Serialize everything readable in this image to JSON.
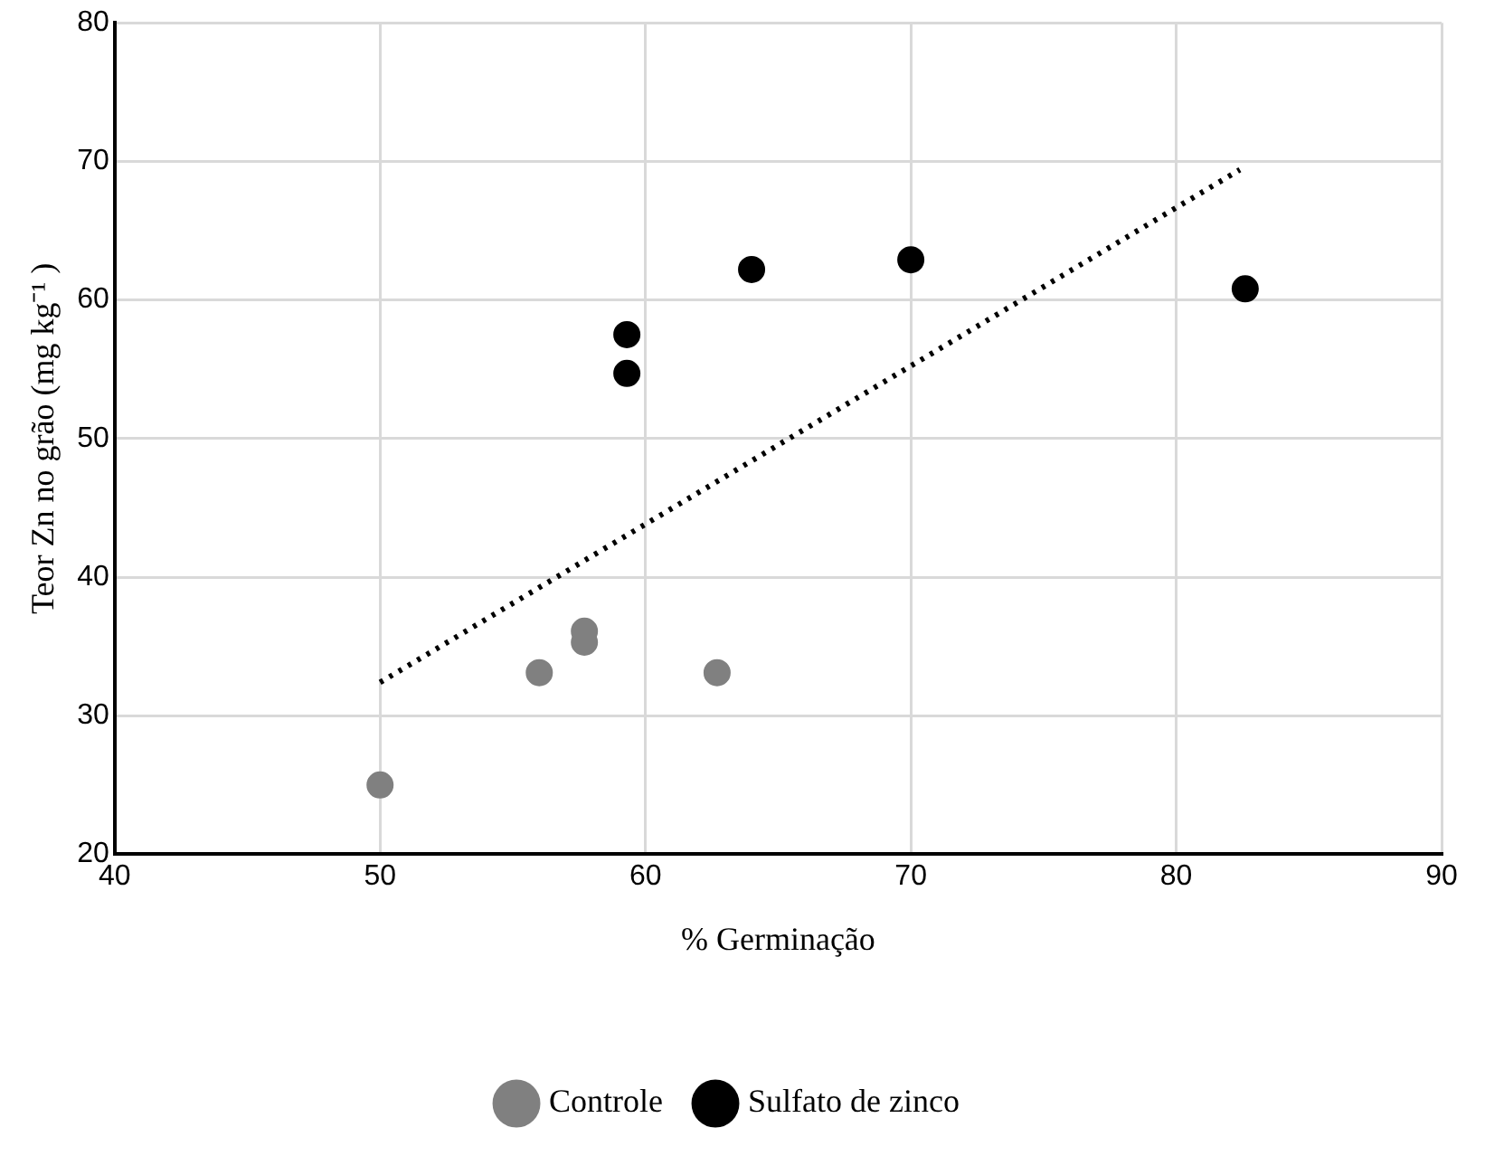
{
  "chart_data": {
    "type": "scatter",
    "xlabel": "% Germinação",
    "ylabel": "Teor Zn no grão (mg kg⁻¹ )",
    "xlim": [
      40,
      90
    ],
    "ylim": [
      20,
      80
    ],
    "xticks": [
      40,
      50,
      60,
      70,
      80,
      90
    ],
    "yticks": [
      20,
      30,
      40,
      50,
      60,
      70,
      80
    ],
    "grid": true,
    "legend": "bottom",
    "marker": "circle",
    "series": [
      {
        "name": "Controle",
        "color": "#808080",
        "x": [
          50,
          56,
          57.7,
          57.7,
          62.7
        ],
        "values": [
          25,
          33.1,
          36.1,
          35.3,
          33.1
        ]
      },
      {
        "name": "Sulfato de zinco",
        "color": "#000000",
        "x": [
          59.3,
          59.3,
          64,
          70,
          82.6
        ],
        "values": [
          57.5,
          54.7,
          62.2,
          62.9,
          60.8
        ]
      },
      {
        "type": "line",
        "color": "#000000",
        "line_style": "dotted",
        "marker": "none",
        "x": [
          50,
          82.4
        ],
        "values": [
          32.4,
          69.4
        ]
      }
    ]
  }
}
